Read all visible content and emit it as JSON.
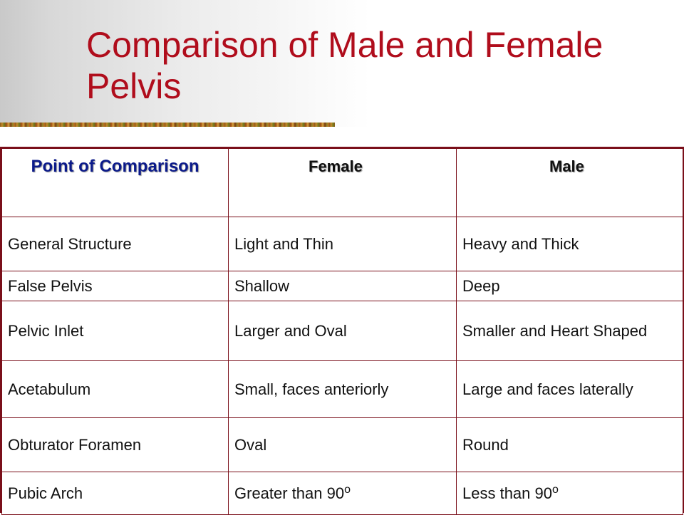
{
  "slide": {
    "title": "Comparison of Male and Female Pelvis"
  },
  "table": {
    "headers": [
      "Point of Comparison",
      "Female",
      "Male"
    ],
    "rows": [
      {
        "point": "General Structure",
        "female": "Light and Thin",
        "male": "Heavy and Thick"
      },
      {
        "point": "False Pelvis",
        "female": "Shallow",
        "male": "Deep"
      },
      {
        "point": "Pelvic Inlet",
        "female": "Larger and Oval",
        "male": "Smaller and Heart Shaped"
      },
      {
        "point": "Acetabulum",
        "female": "Small, faces anteriorly",
        "male": "Large and faces laterally"
      },
      {
        "point": "Obturator Foramen",
        "female": "Oval",
        "male": "Round"
      },
      {
        "point": "Pubic Arch",
        "female": "Greater than 90",
        "male": "Less than 90"
      }
    ],
    "degree_symbol": "o"
  },
  "colors": {
    "title": "#b00d1c",
    "table_border": "#7a0f1a",
    "header_first": "#0b1a8a"
  }
}
